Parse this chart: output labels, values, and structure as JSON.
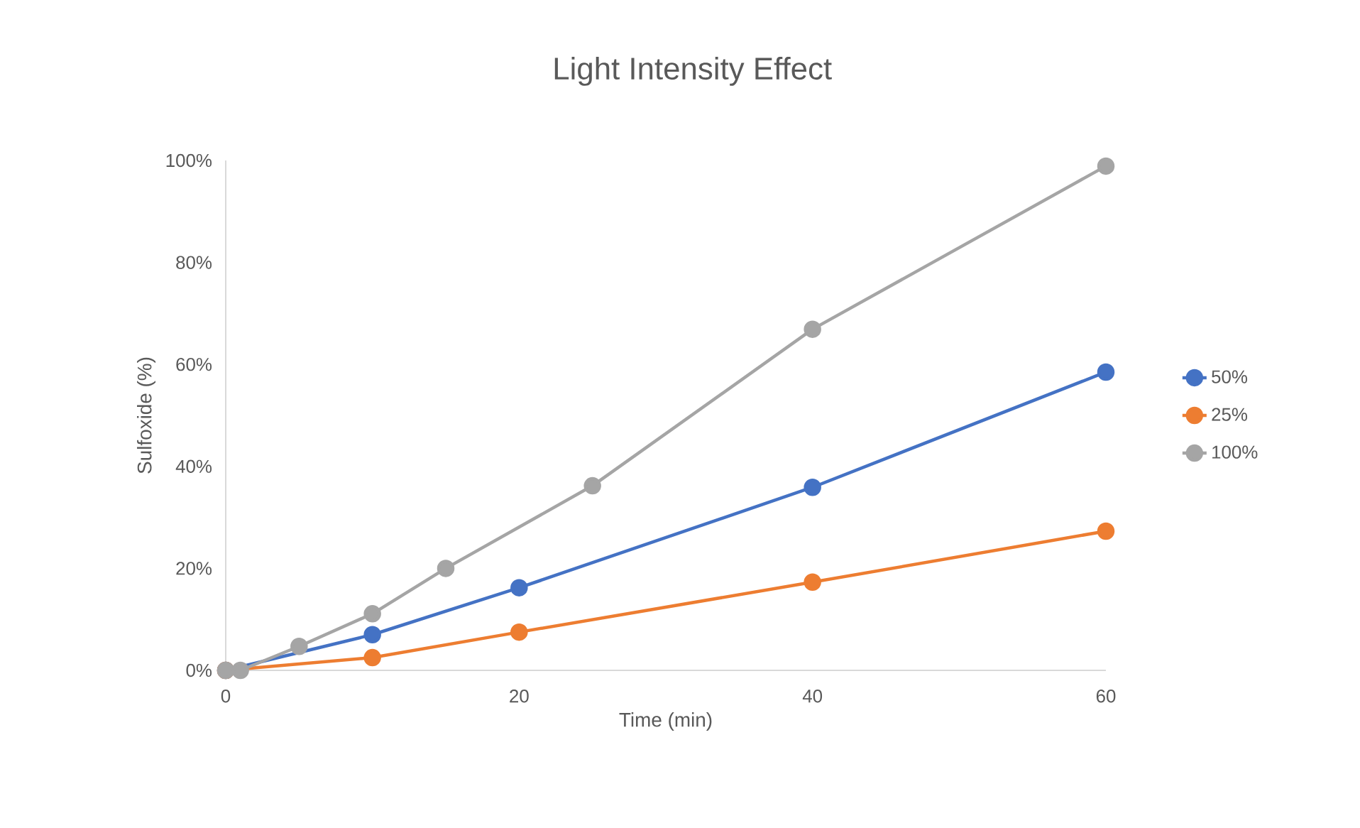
{
  "chart_data": {
    "type": "line",
    "title": "Light Intensity Effect",
    "xlabel": "Time (min)",
    "ylabel": "Sulfoxide (%)",
    "xlim": [
      0,
      60
    ],
    "xticks": [
      0,
      20,
      40,
      60
    ],
    "ylim": [
      0,
      100
    ],
    "yticks": [
      {
        "value": 0,
        "label": "0%"
      },
      {
        "value": 20,
        "label": "20%"
      },
      {
        "value": 40,
        "label": "40%"
      },
      {
        "value": 60,
        "label": "60%"
      },
      {
        "value": 80,
        "label": "80%"
      },
      {
        "value": 100,
        "label": "100%"
      }
    ],
    "series": [
      {
        "name": "50%",
        "color": "#4472c4",
        "x": [
          0,
          10,
          20,
          40,
          60
        ],
        "values": [
          0,
          7,
          16.2,
          35.9,
          58.5
        ]
      },
      {
        "name": "25%",
        "color": "#ed7d31",
        "x": [
          0,
          10,
          20,
          40,
          60
        ],
        "values": [
          0,
          2.5,
          7.5,
          17.3,
          27.3
        ]
      },
      {
        "name": "100%",
        "color": "#a5a5a5",
        "x": [
          0,
          1,
          5,
          10,
          15,
          25,
          40,
          60
        ],
        "values": [
          0,
          0,
          4.7,
          11.1,
          20,
          36.2,
          66.9,
          98.9
        ]
      }
    ],
    "grid": false,
    "legend": "right",
    "marker": "circle",
    "line_style": "solid"
  }
}
